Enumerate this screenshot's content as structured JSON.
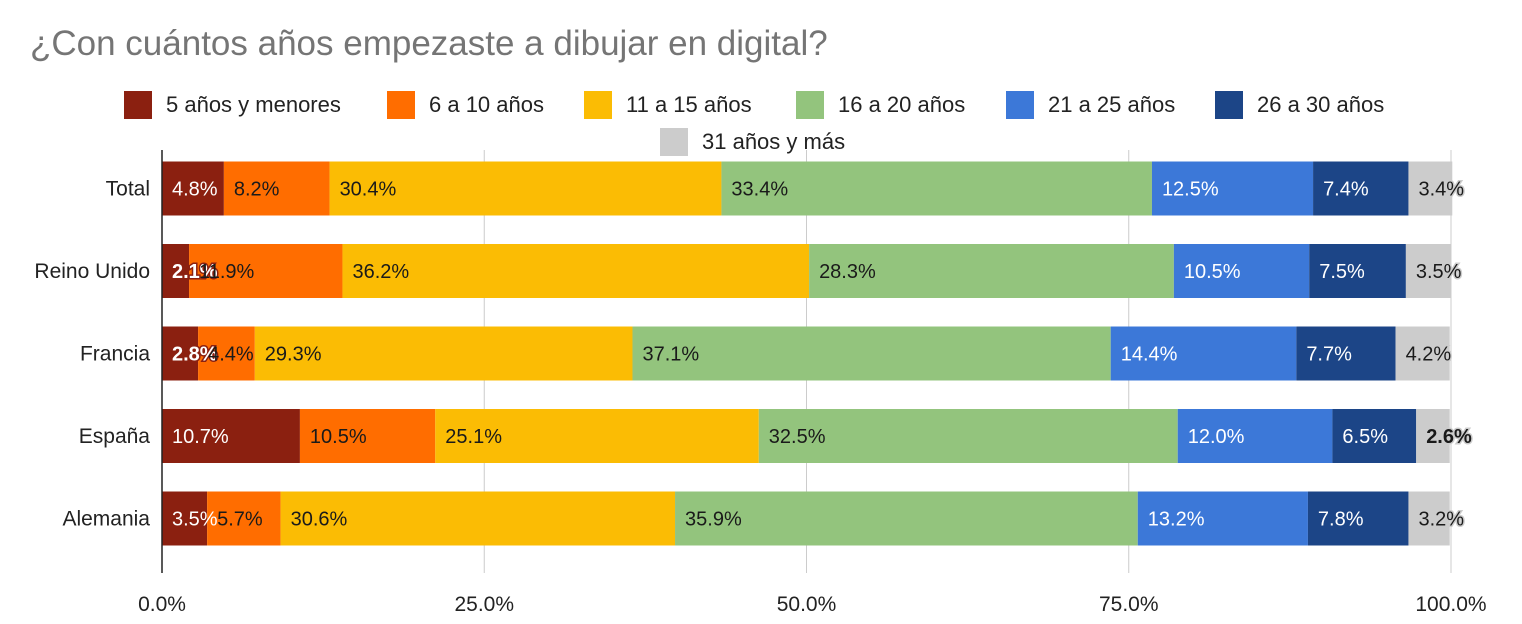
{
  "chart_data": {
    "type": "bar",
    "orientation": "horizontal",
    "stacked": "percent",
    "title": "¿Con cuántos años empezaste a dibujar en digital?",
    "categories": [
      "Total",
      "Reino Unido",
      "Francia",
      "España",
      "Alemania"
    ],
    "series": [
      {
        "name": "5 años y menores",
        "color": "#8B2010",
        "values": [
          4.8,
          2.1,
          2.8,
          10.7,
          3.5
        ],
        "labels": [
          "4.8%",
          "2.1%",
          "2.8%",
          "10.7%",
          "3.5%"
        ]
      },
      {
        "name": "6 a 10 años",
        "color": "#FF6D00",
        "values": [
          8.2,
          11.9,
          4.4,
          10.5,
          5.7
        ],
        "labels": [
          "8.2%",
          "11.9%",
          "4.4%",
          "10.5%",
          "5.7%"
        ]
      },
      {
        "name": "11 a 15 años",
        "color": "#FBBC04",
        "values": [
          30.4,
          36.2,
          29.3,
          25.1,
          30.6
        ],
        "labels": [
          "30.4%",
          "36.2%",
          "29.3%",
          "25.1%",
          "30.6%"
        ]
      },
      {
        "name": "16 a 20 años",
        "color": "#93C47D",
        "values": [
          33.4,
          28.3,
          37.1,
          32.5,
          35.9
        ],
        "labels": [
          "33.4%",
          "28.3%",
          "37.1%",
          "32.5%",
          "35.9%"
        ]
      },
      {
        "name": "21 a 25 años",
        "color": "#3C78D8",
        "values": [
          12.5,
          10.5,
          14.4,
          12.0,
          13.2
        ],
        "labels": [
          "12.5%",
          "10.5%",
          "14.4%",
          "12.0%",
          "13.2%"
        ]
      },
      {
        "name": "26 a 30 años",
        "color": "#1C4587",
        "values": [
          7.4,
          7.5,
          7.7,
          6.5,
          7.8
        ],
        "labels": [
          "7.4%",
          "7.5%",
          "7.7%",
          "6.5%",
          "7.8%"
        ]
      },
      {
        "name": "31 años y más",
        "color": "#CCCCCC",
        "values": [
          3.4,
          3.5,
          4.2,
          2.6,
          3.2
        ],
        "labels": [
          "3.4%",
          "3.5%",
          "4.2%",
          "2.6%",
          "3.2%"
        ]
      }
    ],
    "xlim": [
      0,
      100
    ],
    "xticks": [
      "0.0%",
      "25.0%",
      "50.0%",
      "75.0%",
      "100.0%"
    ],
    "grid": true,
    "legend_position": "top"
  }
}
